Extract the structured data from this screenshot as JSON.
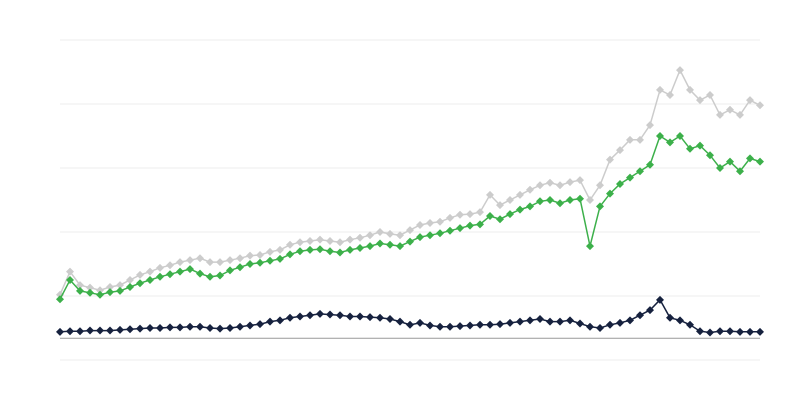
{
  "chart_data": {
    "type": "line",
    "categories": [
      null,
      null,
      null,
      null,
      null,
      null,
      null,
      null,
      null,
      null,
      null,
      null,
      null,
      null,
      null,
      null,
      null,
      null,
      null,
      null,
      null,
      null,
      null,
      null,
      null,
      null,
      null,
      null,
      null,
      null,
      null,
      null,
      null,
      null,
      null,
      null,
      null,
      null,
      null,
      null,
      null,
      null,
      null,
      null,
      null,
      null,
      null,
      null,
      null,
      null,
      null,
      null,
      null,
      null,
      null,
      null,
      null,
      null,
      null,
      null,
      null,
      null,
      null,
      null,
      null,
      null,
      null,
      null,
      null,
      null,
      null
    ],
    "series": [
      {
        "color": "#cccccc",
        "values": [
          1.02,
          1.38,
          1.17,
          1.13,
          1.09,
          1.14,
          1.17,
          1.25,
          1.33,
          1.38,
          1.44,
          1.48,
          1.53,
          1.56,
          1.59,
          1.53,
          1.53,
          1.56,
          1.59,
          1.63,
          1.64,
          1.69,
          1.72,
          1.8,
          1.84,
          1.86,
          1.88,
          1.86,
          1.84,
          1.88,
          1.91,
          1.95,
          2.0,
          1.97,
          1.95,
          2.03,
          2.11,
          2.14,
          2.16,
          2.22,
          2.27,
          2.28,
          2.31,
          2.58,
          2.42,
          2.5,
          2.58,
          2.66,
          2.73,
          2.77,
          2.73,
          2.78,
          2.81,
          2.5,
          2.73,
          3.13,
          3.28,
          3.44,
          3.44,
          3.67,
          4.22,
          4.14,
          4.53,
          4.22,
          4.06,
          4.14,
          3.83,
          3.91,
          3.83,
          4.06,
          3.98
        ]
      },
      {
        "color": "#3cb04a",
        "values": [
          0.95,
          1.25,
          1.08,
          1.05,
          1.02,
          1.06,
          1.08,
          1.14,
          1.2,
          1.25,
          1.3,
          1.34,
          1.38,
          1.42,
          1.35,
          1.3,
          1.32,
          1.4,
          1.45,
          1.5,
          1.52,
          1.55,
          1.58,
          1.65,
          1.7,
          1.72,
          1.73,
          1.7,
          1.68,
          1.72,
          1.75,
          1.78,
          1.82,
          1.8,
          1.78,
          1.85,
          1.92,
          1.95,
          1.98,
          2.02,
          2.06,
          2.1,
          2.12,
          2.25,
          2.2,
          2.28,
          2.35,
          2.4,
          2.48,
          2.5,
          2.45,
          2.5,
          2.52,
          1.78,
          2.4,
          2.6,
          2.75,
          2.85,
          2.95,
          3.05,
          3.5,
          3.4,
          3.5,
          3.3,
          3.35,
          3.2,
          3.0,
          3.1,
          2.95,
          3.15,
          3.1
        ]
      },
      {
        "color": "#16213e",
        "values": [
          0.44,
          0.45,
          0.45,
          0.46,
          0.46,
          0.46,
          0.47,
          0.48,
          0.49,
          0.5,
          0.5,
          0.51,
          0.51,
          0.52,
          0.52,
          0.5,
          0.49,
          0.5,
          0.52,
          0.54,
          0.56,
          0.6,
          0.62,
          0.66,
          0.68,
          0.7,
          0.72,
          0.71,
          0.7,
          0.68,
          0.68,
          0.67,
          0.66,
          0.64,
          0.6,
          0.55,
          0.58,
          0.54,
          0.52,
          0.52,
          0.53,
          0.54,
          0.55,
          0.55,
          0.56,
          0.58,
          0.6,
          0.62,
          0.64,
          0.6,
          0.6,
          0.62,
          0.57,
          0.52,
          0.5,
          0.55,
          0.58,
          0.62,
          0.7,
          0.78,
          0.94,
          0.66,
          0.62,
          0.55,
          0.45,
          0.43,
          0.45,
          0.45,
          0.44,
          0.44,
          0.44
        ]
      }
    ],
    "ylim": [
      0,
      5
    ],
    "yticks": [
      0,
      1,
      2,
      3,
      4,
      5
    ],
    "grid": true,
    "baseline": 0.34
  }
}
